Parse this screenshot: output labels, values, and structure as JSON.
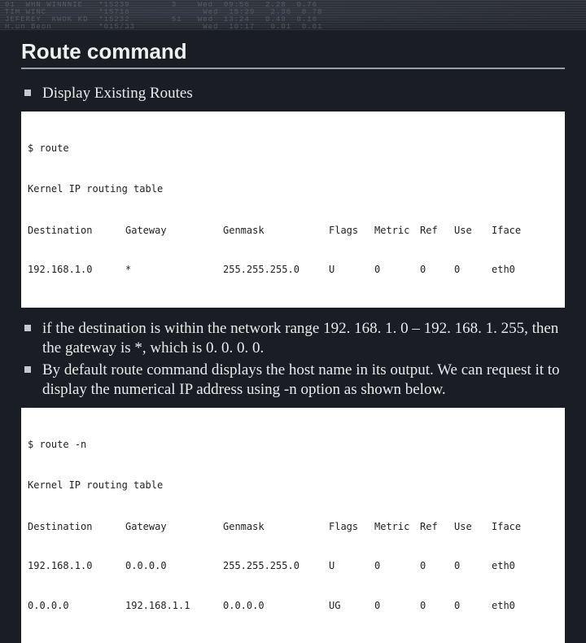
{
  "header_noise": "01  WHN WINNNIE   *15239        3    Wed  09:56   2.28  0.76\nTIM WINC          *15716              Wed  15:29   2.36  0.78\nJEFEREY  KWOK KD  *15232        51   Wed  13:24   0.49  0.16\nH.un Beon         *015/33             Wed  10:17   0.01  0.01",
  "title": "Route command",
  "bullets_top": [
    "Display Existing Routes"
  ],
  "terminal1": {
    "cmd": "$ route",
    "subtitle": "Kernel IP routing table",
    "columns": [
      "Destination",
      "Gateway",
      "Genmask",
      "Flags",
      "Metric",
      "Ref",
      "Use",
      "Iface"
    ],
    "rows": [
      [
        "192.168.1.0",
        "*",
        "255.255.255.0",
        "U",
        "0",
        "0",
        "0",
        "eth0"
      ]
    ]
  },
  "bullets_mid": [
    "if the destination is within the network range 192. 168. 1. 0 – 192. 168. 1. 255, then the gateway is *, which is 0. 0. 0. 0.",
    "By default route command displays the host name in its output. We can request it to display the numerical IP address using -n option as shown below."
  ],
  "terminal2": {
    "cmd": "$ route -n",
    "subtitle": "Kernel IP routing table",
    "columns": [
      "Destination",
      "Gateway",
      "Genmask",
      "Flags",
      "Metric",
      "Ref",
      "Use",
      "Iface"
    ],
    "rows": [
      [
        "192.168.1.0",
        "0.0.0.0",
        "255.255.255.0",
        "U",
        "0",
        "0",
        "0",
        "eth0"
      ],
      [
        "0.0.0.0",
        "192.168.1.1",
        "0.0.0.0",
        "UG",
        "0",
        "0",
        "0",
        "eth0"
      ]
    ]
  }
}
